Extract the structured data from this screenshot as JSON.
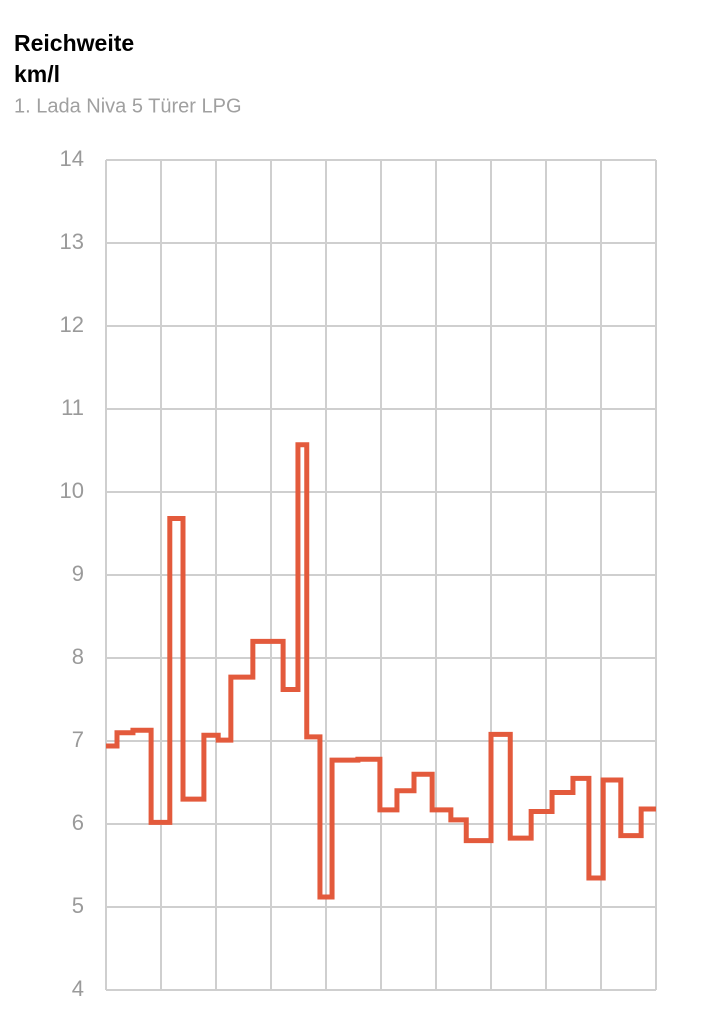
{
  "chart_data": {
    "type": "line",
    "step": "post",
    "title": "Reichweite",
    "unit": "km/l",
    "subtitle": "1. Lada Niva 5 Türer LPG",
    "xlim": [
      0,
      10
    ],
    "ylim": [
      4,
      14
    ],
    "yticks": [
      4,
      5,
      6,
      7,
      8,
      9,
      10,
      11,
      12,
      13,
      14
    ],
    "grid": true,
    "series": [
      {
        "color": "#e35a3c",
        "x": [
          0,
          0.2,
          0.49,
          0.82,
          1.16,
          1.4,
          1.78,
          2.04,
          2.27,
          2.67,
          3.22,
          3.49,
          3.65,
          3.89,
          4.11,
          4.58,
          4.98,
          5.29,
          5.6,
          5.93,
          6.27,
          6.55,
          7.0,
          7.35,
          7.73,
          8.11,
          8.49,
          8.78,
          9.04,
          9.36,
          9.73
        ],
        "values": [
          6.94,
          7.1,
          7.13,
          6.02,
          9.68,
          6.3,
          7.07,
          7.01,
          7.77,
          8.2,
          7.62,
          10.57,
          7.05,
          5.12,
          6.77,
          6.78,
          6.17,
          6.4,
          6.6,
          6.17,
          6.05,
          5.8,
          7.08,
          5.83,
          6.15,
          6.38,
          6.55,
          5.35,
          6.53,
          5.86,
          6.18
        ]
      }
    ]
  }
}
